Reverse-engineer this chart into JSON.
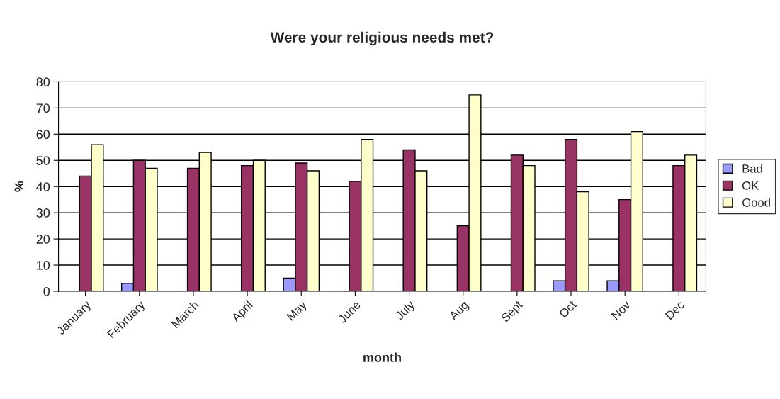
{
  "chart_data": {
    "type": "bar",
    "title": "Were your religious needs met?",
    "xlabel": "month",
    "ylabel": "%",
    "categories": [
      "January",
      "February",
      "March",
      "April",
      "May",
      "June",
      "July",
      "Aug",
      "Sept",
      "Oct",
      "Nov",
      "Dec"
    ],
    "series": [
      {
        "name": "Bad",
        "color": "#9999ff",
        "values": [
          null,
          3,
          null,
          null,
          5,
          null,
          null,
          null,
          null,
          4,
          4,
          null
        ]
      },
      {
        "name": "OK",
        "color": "#993366",
        "values": [
          44,
          50,
          47,
          48,
          49,
          42,
          54,
          25,
          52,
          58,
          35,
          48
        ]
      },
      {
        "name": "Good",
        "color": "#ffffcc",
        "values": [
          56,
          47,
          53,
          50,
          46,
          58,
          46,
          75,
          48,
          38,
          61,
          52
        ]
      }
    ],
    "ylim": [
      0,
      80
    ],
    "yticks": [
      0,
      10,
      20,
      30,
      40,
      50,
      60,
      70,
      80
    ],
    "grid": "y",
    "legend": "right"
  }
}
